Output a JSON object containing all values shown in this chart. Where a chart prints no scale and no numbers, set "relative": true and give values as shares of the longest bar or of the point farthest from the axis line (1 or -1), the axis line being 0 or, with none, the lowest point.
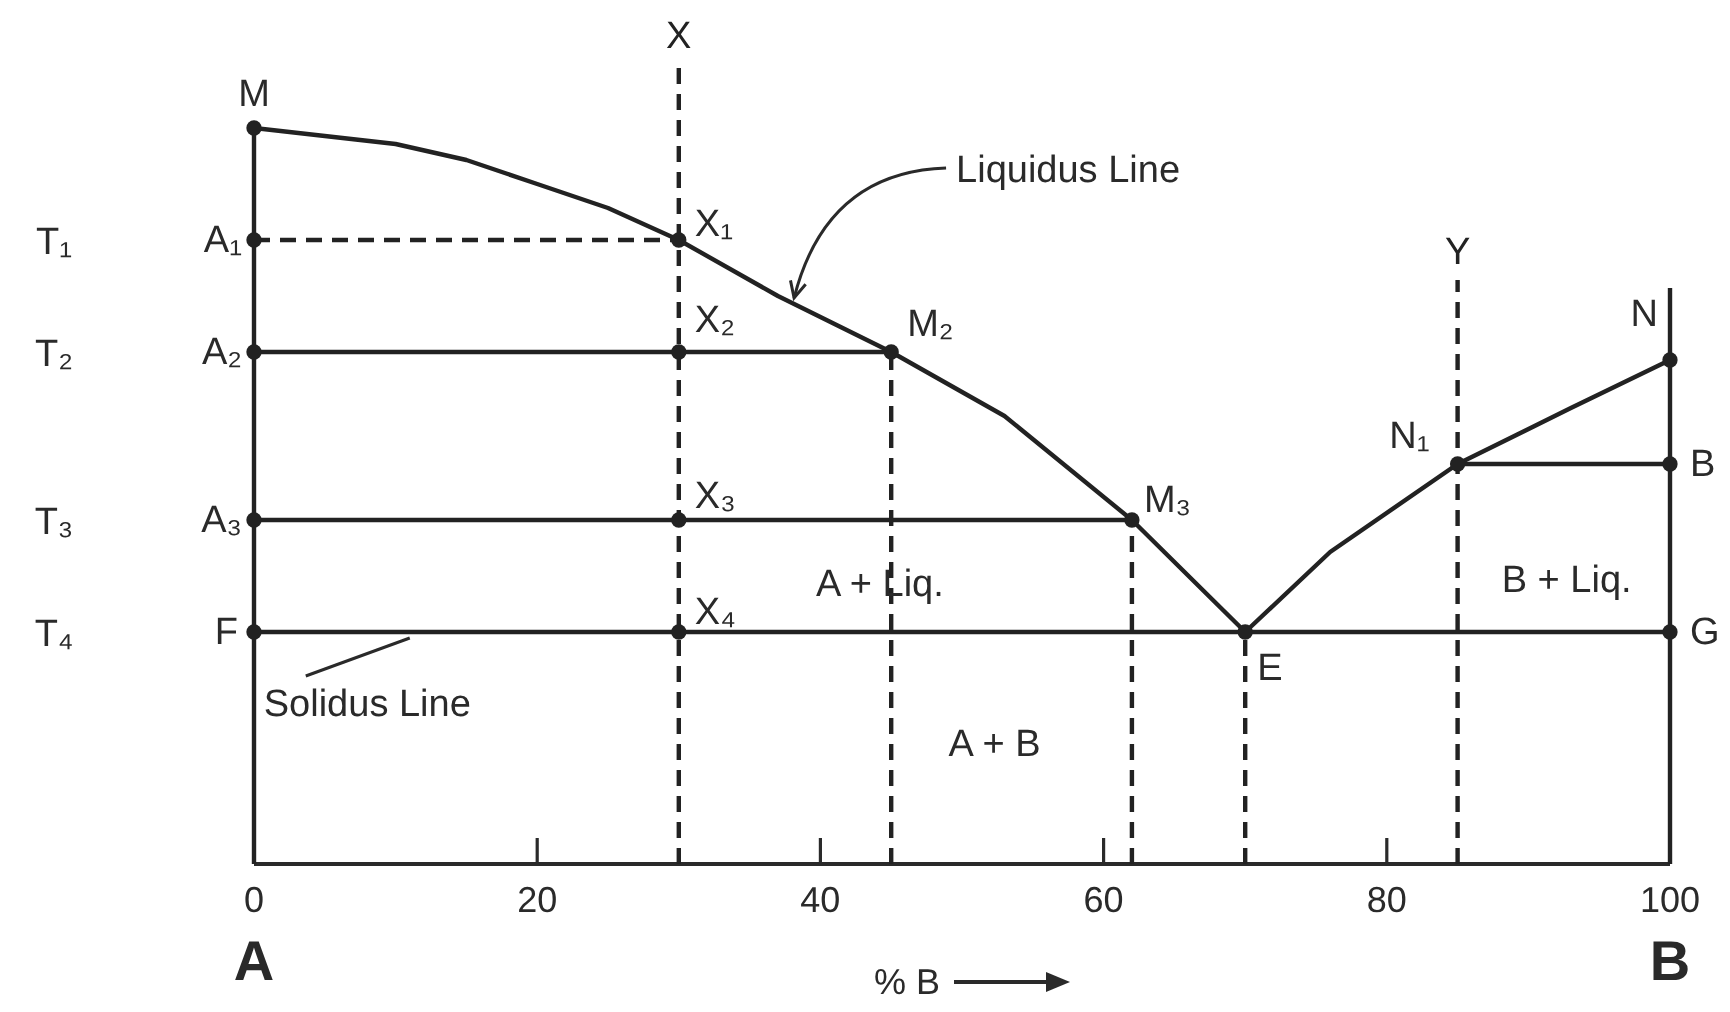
{
  "chart_data": {
    "type": "line",
    "relative": true,
    "xlabel": "% B",
    "xlim": [
      0,
      100
    ],
    "xticks": [
      0,
      20,
      40,
      60,
      80,
      100
    ],
    "series": [
      {
        "color": "#222222",
        "x": [
          0,
          5,
          10,
          15,
          20,
          25,
          30,
          37,
          45,
          53,
          62,
          70,
          76,
          85,
          93,
          100
        ],
        "values": [
          0.92,
          0.91,
          0.9,
          0.88,
          0.85,
          0.82,
          0.78,
          0.71,
          0.64,
          0.56,
          0.43,
          0.29,
          0.39,
          0.5,
          0.57,
          0.63
        ]
      },
      {
        "color": "#222222",
        "x": [
          0,
          100
        ],
        "values": [
          0.29,
          0.29
        ]
      },
      {
        "color": "#222222",
        "x": [
          0,
          30
        ],
        "values": [
          0.78,
          0.78
        ],
        "line_style": "dashed"
      },
      {
        "color": "#222222",
        "x": [
          0,
          45
        ],
        "values": [
          0.64,
          0.64
        ]
      },
      {
        "color": "#222222",
        "x": [
          0,
          62
        ],
        "values": [
          0.43,
          0.43
        ]
      },
      {
        "color": "#222222",
        "x": [
          85,
          100
        ],
        "values": [
          0.5,
          0.5
        ]
      },
      {
        "color": "#222222",
        "x": [
          0,
          0
        ],
        "values": [
          0,
          0.92
        ]
      },
      {
        "color": "#222222",
        "x": [
          100,
          100
        ],
        "values": [
          0,
          0.72
        ]
      },
      {
        "name": "X",
        "color": "#222222",
        "x": [
          30,
          30
        ],
        "values": [
          0,
          1
        ],
        "line_style": "dashed"
      },
      {
        "name": "Y",
        "color": "#222222",
        "x": [
          85,
          85
        ],
        "values": [
          0,
          0.73
        ],
        "line_style": "dashed"
      },
      {
        "color": "#222222",
        "x": [
          45,
          45
        ],
        "values": [
          0,
          0.64
        ],
        "line_style": "dashed"
      },
      {
        "color": "#222222",
        "x": [
          62,
          62
        ],
        "values": [
          0,
          0.43
        ],
        "line_style": "dashed"
      },
      {
        "color": "#222222",
        "x": [
          70,
          70
        ],
        "values": [
          0,
          0.29
        ],
        "line_style": "dashed"
      },
      {
        "type": "scatter",
        "marker": "circle",
        "color": "#222222",
        "x": [
          0,
          0,
          30,
          0,
          30,
          45,
          0,
          30,
          62,
          0,
          30,
          70,
          100,
          85,
          100,
          100
        ],
        "values": [
          0.92,
          0.78,
          0.78,
          0.64,
          0.64,
          0.64,
          0.43,
          0.43,
          0.43,
          0.29,
          0.29,
          0.29,
          0.63,
          0.5,
          0.5,
          0.29
        ]
      }
    ],
    "annotations": [
      {
        "text": "M",
        "x": 0,
        "y": 0.92
      },
      {
        "text": "A₁",
        "x": 0,
        "y": 0.78
      },
      {
        "text": "X₁",
        "x": 30,
        "y": 0.78
      },
      {
        "text": "A₂",
        "x": 0,
        "y": 0.64
      },
      {
        "text": "X₂",
        "x": 30,
        "y": 0.64
      },
      {
        "text": "M₂",
        "x": 45,
        "y": 0.64
      },
      {
        "text": "A₃",
        "x": 0,
        "y": 0.43
      },
      {
        "text": "X₃",
        "x": 30,
        "y": 0.43
      },
      {
        "text": "M₃",
        "x": 62,
        "y": 0.43
      },
      {
        "text": "F",
        "x": 0,
        "y": 0.29
      },
      {
        "text": "X₄",
        "x": 30,
        "y": 0.29
      },
      {
        "text": "E",
        "x": 70,
        "y": 0.29
      },
      {
        "text": "N",
        "x": 100,
        "y": 0.63
      },
      {
        "text": "N₁",
        "x": 85,
        "y": 0.5
      },
      {
        "text": "B",
        "x": 100,
        "y": 0.5
      },
      {
        "text": "G",
        "x": 100,
        "y": 0.29
      },
      {
        "text": "A",
        "x": 0,
        "y": 0
      },
      {
        "text": "B",
        "x": 100,
        "y": 0
      },
      {
        "text": "Liquidus Line",
        "x": 38,
        "y": 0.7
      },
      {
        "text": "Solidus Line",
        "x": 11,
        "y": 0.29
      },
      "A + Liq.",
      "B + Liq.",
      "A + B",
      "T₁",
      "T₂",
      "T₃",
      "T₄"
    ]
  }
}
